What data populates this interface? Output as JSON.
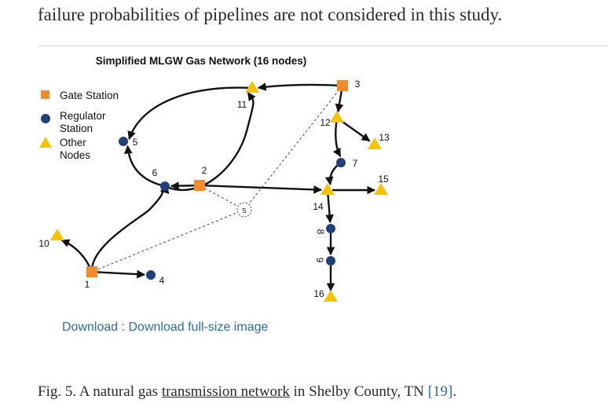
{
  "intro_text": "failure probabilities of pipelines are not considered in this study.",
  "figure": {
    "title": "Simplified MLGW Gas Network (16 nodes)",
    "legend": {
      "gate_station": "Gate Station",
      "regulator_line1": "Regulator",
      "regulator_line2": "Station",
      "other_line1": "Other",
      "other_line2": "Nodes"
    },
    "colors": {
      "gate_station": "#f28c28",
      "regulator": "#1f3f7a",
      "other": "#f5c400",
      "edge": "#111111"
    },
    "source_label": "s",
    "nodes": [
      {
        "id": "1",
        "label": "1",
        "type": "gate"
      },
      {
        "id": "2",
        "label": "2",
        "type": "gate"
      },
      {
        "id": "3",
        "label": "3",
        "type": "gate"
      },
      {
        "id": "4",
        "label": "4",
        "type": "regulator"
      },
      {
        "id": "5",
        "label": "5",
        "type": "regulator"
      },
      {
        "id": "6",
        "label": "6",
        "type": "regulator"
      },
      {
        "id": "7",
        "label": "7",
        "type": "regulator"
      },
      {
        "id": "8",
        "label": "8",
        "type": "regulator"
      },
      {
        "id": "9",
        "label": "9",
        "type": "regulator"
      },
      {
        "id": "10",
        "label": "10",
        "type": "other"
      },
      {
        "id": "11",
        "label": "11",
        "type": "other"
      },
      {
        "id": "12",
        "label": "12",
        "type": "other"
      },
      {
        "id": "13",
        "label": "13",
        "type": "other"
      },
      {
        "id": "14",
        "label": "14",
        "type": "other"
      },
      {
        "id": "15",
        "label": "15",
        "type": "other"
      },
      {
        "id": "16",
        "label": "16",
        "type": "other"
      }
    ],
    "edges": [
      {
        "from": "3",
        "to": "11"
      },
      {
        "from": "11",
        "to": "5"
      },
      {
        "from": "6",
        "to": "11"
      },
      {
        "from": "2",
        "to": "6"
      },
      {
        "from": "6",
        "to": "5"
      },
      {
        "from": "1",
        "to": "6"
      },
      {
        "from": "1",
        "to": "10"
      },
      {
        "from": "1",
        "to": "4"
      },
      {
        "from": "2",
        "to": "14"
      },
      {
        "from": "14",
        "to": "15"
      },
      {
        "from": "14",
        "to": "8"
      },
      {
        "from": "8",
        "to": "9"
      },
      {
        "from": "9",
        "to": "16"
      },
      {
        "from": "3",
        "to": "12"
      },
      {
        "from": "12",
        "to": "13"
      },
      {
        "from": "12",
        "to": "7"
      },
      {
        "from": "7",
        "to": "14"
      }
    ],
    "source_links": [
      "1",
      "2",
      "3"
    ]
  },
  "download": {
    "prefix": "Download",
    "separator": " : ",
    "link": "Download full-size image"
  },
  "caption": {
    "prefix": "Fig. 5. A natural gas ",
    "link": "transmission network",
    "middle": " in Shelby County, TN ",
    "citation": "[19]",
    "suffix": "."
  }
}
